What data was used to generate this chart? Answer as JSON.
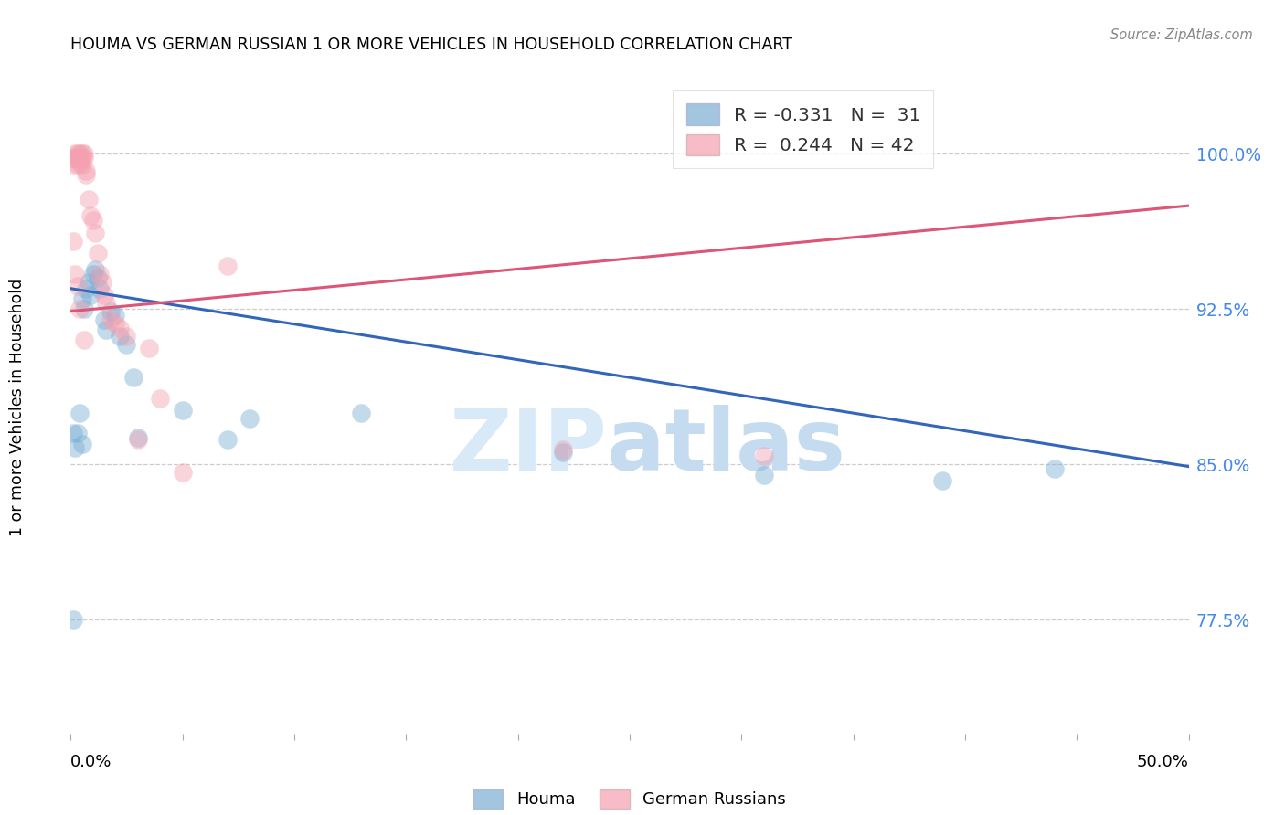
{
  "title": "HOUMA VS GERMAN RUSSIAN 1 OR MORE VEHICLES IN HOUSEHOLD CORRELATION CHART",
  "source": "Source: ZipAtlas.com",
  "ylabel": "1 or more Vehicles in Household",
  "ytick_labels": [
    "77.5%",
    "85.0%",
    "92.5%",
    "100.0%"
  ],
  "ytick_values": [
    0.775,
    0.85,
    0.925,
    1.0
  ],
  "xmin": 0.0,
  "xmax": 0.5,
  "ymin": 0.72,
  "ymax": 1.035,
  "houma_color": "#7BAFD4",
  "german_russian_color": "#F4A0B0",
  "line_houma_color": "#3366BB",
  "line_german_color": "#DD5577",
  "legend_label_houma": "Houma",
  "legend_label_german": "German Russians",
  "watermark_zip": "ZIP",
  "watermark_atlas": "atlas",
  "houma_R": -0.331,
  "houma_N": 31,
  "german_russian_R": 0.244,
  "german_russian_N": 42,
  "houma_line_x0": 0.0,
  "houma_line_y0": 0.935,
  "houma_line_x1": 0.5,
  "houma_line_y1": 0.849,
  "german_line_x0": 0.0,
  "german_line_y0": 0.924,
  "german_line_x1": 0.5,
  "german_line_y1": 0.975,
  "houma_x": [
    0.001,
    0.002,
    0.003,
    0.004,
    0.005,
    0.005,
    0.006,
    0.007,
    0.008,
    0.009,
    0.01,
    0.011,
    0.012,
    0.013,
    0.015,
    0.016,
    0.018,
    0.02,
    0.022,
    0.025,
    0.028,
    0.03,
    0.05,
    0.07,
    0.08,
    0.13,
    0.22,
    0.31,
    0.39,
    0.44,
    0.001
  ],
  "houma_y": [
    0.775,
    0.858,
    0.865,
    0.875,
    0.86,
    0.93,
    0.925,
    0.935,
    0.938,
    0.932,
    0.942,
    0.944,
    0.94,
    0.935,
    0.92,
    0.915,
    0.924,
    0.922,
    0.912,
    0.908,
    0.892,
    0.863,
    0.876,
    0.862,
    0.872,
    0.875,
    0.856,
    0.845,
    0.842,
    0.848,
    0.865
  ],
  "german_x": [
    0.001,
    0.001,
    0.002,
    0.002,
    0.003,
    0.003,
    0.003,
    0.004,
    0.004,
    0.004,
    0.005,
    0.005,
    0.005,
    0.006,
    0.006,
    0.007,
    0.007,
    0.008,
    0.009,
    0.01,
    0.011,
    0.012,
    0.013,
    0.014,
    0.015,
    0.016,
    0.018,
    0.02,
    0.022,
    0.025,
    0.03,
    0.035,
    0.04,
    0.05,
    0.07,
    0.22,
    0.31,
    0.001,
    0.002,
    0.003,
    0.004,
    0.006
  ],
  "german_y": [
    0.995,
    0.998,
    1.0,
    0.998,
    0.998,
    1.0,
    0.995,
    1.0,
    0.998,
    0.996,
    1.0,
    0.998,
    0.995,
    1.0,
    0.998,
    0.992,
    0.99,
    0.978,
    0.97,
    0.968,
    0.962,
    0.952,
    0.942,
    0.938,
    0.932,
    0.928,
    0.92,
    0.918,
    0.916,
    0.912,
    0.862,
    0.906,
    0.882,
    0.846,
    0.946,
    0.857,
    0.854,
    0.958,
    0.942,
    0.936,
    0.925,
    0.91
  ]
}
